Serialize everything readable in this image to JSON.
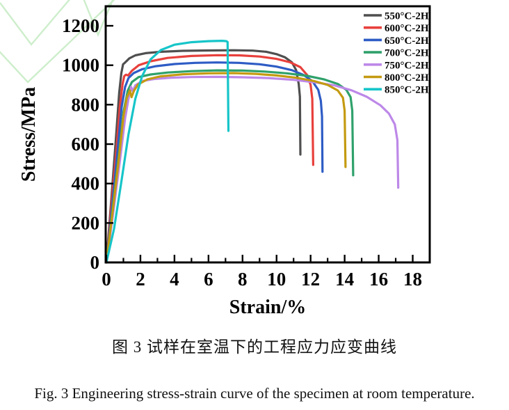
{
  "figure": {
    "caption_zh": "图 3  试样在室温下的工程应力应变曲线",
    "caption_en": "Fig. 3 Engineering stress-strain curve of the specimen at room temperature."
  },
  "chart_data": {
    "type": "line",
    "title": "",
    "xlabel": "Strain/%",
    "ylabel": "Stress/MPa",
    "xlim": [
      0,
      19.0
    ],
    "ylim": [
      0,
      1299
    ],
    "x_ticks": [
      0,
      2,
      4,
      6,
      8,
      10,
      12,
      14,
      16,
      18
    ],
    "x_minor_ticks": [
      1,
      3,
      5,
      7,
      9,
      11,
      13,
      15,
      17
    ],
    "y_ticks": [
      0,
      200,
      400,
      600,
      800,
      1000,
      1200
    ],
    "grid": false,
    "legend_position": "top-right-inside",
    "frame_color": "#000000",
    "watermark_color": "#cdeecb",
    "series": [
      {
        "name": "550°C-2H",
        "color": "#4f4f4f",
        "ultimate_stress_mpa": 1076,
        "fracture_strain_pct": 11.4,
        "points": [
          [
            0,
            0
          ],
          [
            0.3,
            330
          ],
          [
            0.55,
            620
          ],
          [
            0.75,
            860
          ],
          [
            0.88,
            960
          ],
          [
            0.98,
            1005
          ],
          [
            1.08,
            1012
          ],
          [
            1.15,
            1018
          ],
          [
            1.35,
            1035
          ],
          [
            1.7,
            1050
          ],
          [
            2.3,
            1061
          ],
          [
            3.2,
            1068
          ],
          [
            4.5,
            1073
          ],
          [
            6,
            1075
          ],
          [
            7.5,
            1076
          ],
          [
            8.6,
            1074
          ],
          [
            9.4,
            1068
          ],
          [
            10.0,
            1056
          ],
          [
            10.5,
            1040
          ],
          [
            10.9,
            1015
          ],
          [
            11.15,
            975
          ],
          [
            11.3,
            905
          ],
          [
            11.37,
            840
          ],
          [
            11.4,
            547
          ]
        ]
      },
      {
        "name": "600°C-2H",
        "color": "#e8403c",
        "ultimate_stress_mpa": 1051,
        "fracture_strain_pct": 12.15,
        "points": [
          [
            0,
            0
          ],
          [
            0.3,
            300
          ],
          [
            0.6,
            580
          ],
          [
            0.8,
            800
          ],
          [
            0.95,
            905
          ],
          [
            1.05,
            945
          ],
          [
            1.15,
            952
          ],
          [
            1.28,
            948
          ],
          [
            1.5,
            972
          ],
          [
            1.9,
            1000
          ],
          [
            2.6,
            1020
          ],
          [
            3.6,
            1037
          ],
          [
            5,
            1047
          ],
          [
            6.5,
            1051
          ],
          [
            7.8,
            1050
          ],
          [
            9,
            1044
          ],
          [
            10,
            1032
          ],
          [
            10.8,
            1015
          ],
          [
            11.4,
            990
          ],
          [
            11.8,
            950
          ],
          [
            12.0,
            900
          ],
          [
            12.1,
            830
          ],
          [
            12.15,
            495
          ]
        ]
      },
      {
        "name": "650°C-2H",
        "color": "#2e5cc5",
        "ultimate_stress_mpa": 1014,
        "fracture_strain_pct": 12.7,
        "points": [
          [
            0,
            0
          ],
          [
            0.35,
            300
          ],
          [
            0.65,
            560
          ],
          [
            0.9,
            790
          ],
          [
            1.1,
            890
          ],
          [
            1.3,
            935
          ],
          [
            1.6,
            960
          ],
          [
            2.1,
            980
          ],
          [
            2.9,
            995
          ],
          [
            4,
            1006
          ],
          [
            5.2,
            1012
          ],
          [
            6.5,
            1014
          ],
          [
            7.8,
            1012
          ],
          [
            9,
            1005
          ],
          [
            10,
            993
          ],
          [
            10.9,
            975
          ],
          [
            11.6,
            950
          ],
          [
            12.1,
            920
          ],
          [
            12.45,
            875
          ],
          [
            12.6,
            820
          ],
          [
            12.67,
            740
          ],
          [
            12.7,
            460
          ]
        ]
      },
      {
        "name": "700°C-2H",
        "color": "#2fa16b",
        "ultimate_stress_mpa": 974,
        "fracture_strain_pct": 14.5,
        "points": [
          [
            0,
            0
          ],
          [
            0.4,
            300
          ],
          [
            0.75,
            560
          ],
          [
            1.0,
            760
          ],
          [
            1.25,
            870
          ],
          [
            1.5,
            915
          ],
          [
            1.9,
            940
          ],
          [
            2.6,
            953
          ],
          [
            3.6,
            963
          ],
          [
            5,
            970
          ],
          [
            6.5,
            974
          ],
          [
            8,
            973
          ],
          [
            9.3,
            968
          ],
          [
            10.6,
            959
          ],
          [
            11.8,
            946
          ],
          [
            12.8,
            928
          ],
          [
            13.6,
            905
          ],
          [
            14.1,
            875
          ],
          [
            14.35,
            838
          ],
          [
            14.45,
            770
          ],
          [
            14.5,
            442
          ]
        ]
      },
      {
        "name": "750°C-2H",
        "color": "#bd88e8",
        "ultimate_stress_mpa": 941,
        "fracture_strain_pct": 17.15,
        "points": [
          [
            0,
            0
          ],
          [
            0.4,
            250
          ],
          [
            0.8,
            520
          ],
          [
            1.1,
            730
          ],
          [
            1.3,
            830
          ],
          [
            1.45,
            890
          ],
          [
            1.55,
            868
          ],
          [
            1.7,
            898
          ],
          [
            2.1,
            920
          ],
          [
            2.8,
            930
          ],
          [
            3.8,
            937
          ],
          [
            5,
            940
          ],
          [
            6.5,
            941
          ],
          [
            8,
            939
          ],
          [
            9.5,
            935
          ],
          [
            11,
            926
          ],
          [
            12.3,
            913
          ],
          [
            13.4,
            898
          ],
          [
            14.4,
            873
          ],
          [
            15.3,
            840
          ],
          [
            16.1,
            797
          ],
          [
            16.6,
            755
          ],
          [
            16.95,
            700
          ],
          [
            17.1,
            620
          ],
          [
            17.15,
            379
          ]
        ]
      },
      {
        "name": "800°C-2H",
        "color": "#c49a10",
        "ultimate_stress_mpa": 960,
        "fracture_strain_pct": 14.05,
        "points": [
          [
            0,
            0
          ],
          [
            0.4,
            280
          ],
          [
            0.75,
            540
          ],
          [
            1.0,
            740
          ],
          [
            1.2,
            835
          ],
          [
            1.38,
            872
          ],
          [
            1.48,
            838
          ],
          [
            1.62,
            870
          ],
          [
            1.85,
            902
          ],
          [
            2.4,
            928
          ],
          [
            3.2,
            944
          ],
          [
            4.5,
            954
          ],
          [
            6,
            959
          ],
          [
            7.5,
            960
          ],
          [
            8.8,
            956
          ],
          [
            10,
            948
          ],
          [
            11.2,
            936
          ],
          [
            12.2,
            920
          ],
          [
            13.0,
            900
          ],
          [
            13.6,
            872
          ],
          [
            13.9,
            835
          ],
          [
            14.0,
            770
          ],
          [
            14.05,
            484
          ]
        ]
      },
      {
        "name": "850°C-2H",
        "color": "#16c5c9",
        "ultimate_stress_mpa": 1124,
        "fracture_strain_pct": 7.17,
        "points": [
          [
            0,
            0
          ],
          [
            0.45,
            170
          ],
          [
            0.9,
            420
          ],
          [
            1.3,
            650
          ],
          [
            1.7,
            830
          ],
          [
            2.1,
            945
          ],
          [
            2.6,
            1030
          ],
          [
            3.2,
            1077
          ],
          [
            4.0,
            1104
          ],
          [
            5.0,
            1117
          ],
          [
            6.0,
            1122
          ],
          [
            6.8,
            1124
          ],
          [
            7.05,
            1122
          ],
          [
            7.12,
            1118
          ],
          [
            7.17,
            667
          ]
        ]
      }
    ]
  }
}
